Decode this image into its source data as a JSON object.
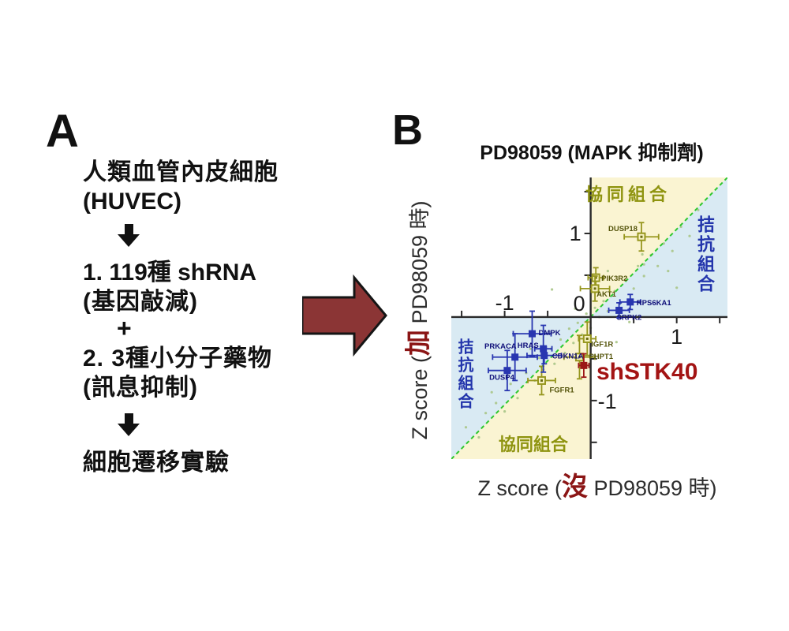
{
  "panelA": {
    "label": "A",
    "line1": "人類血管內皮細胞",
    "line2": "(HUVEC)",
    "line3": "1. 119種 shRNA",
    "line4": "(基因敲減)",
    "plus": "+",
    "line5": "2. 3種小分子藥物",
    "line6": "(訊息抑制)",
    "line7": "細胞遷移實驗"
  },
  "panelB": {
    "label": "B",
    "title": "PD98059 (MAPK 抑制劑)",
    "xlabel_pre": "Z score (",
    "xlabel_highlight": "沒",
    "xlabel_post": " PD98059 時)",
    "ylabel_pre": "Z score (",
    "ylabel_highlight": "加",
    "ylabel_post": " PD98059 時)",
    "annotation": "shSTK40",
    "quadrant_top": "協同組合",
    "quadrant_bottom": "協同組合",
    "quadrant_left": "拮抗組合",
    "quadrant_right": "拮抗組合"
  },
  "colors": {
    "flow_arrow_fill": "#8b3535",
    "flow_arrow_stroke": "#151515",
    "yellow_region": "#faf4d2",
    "blue_region": "#d9eaf3",
    "diagonal": "#2ec72e",
    "axis": "#2a2a2a",
    "olive_series": "#96961e",
    "olive_marker_fill": "#f7f2c2",
    "olive_label": "#55550c",
    "blue_series": "#2836b0",
    "blue_label": "#10107a",
    "red_series": "#9c1616",
    "background_dots": "#a9c587",
    "highlight_text": "#8b1515",
    "annotation_text": "#a31414"
  },
  "chart_data": {
    "type": "scatter",
    "title": "PD98059 (MAPK 抑制劑)",
    "xlabel": "Z score (沒 PD98059 時)",
    "ylabel": "Z score (加 PD98059 時)",
    "xlim": [
      -1.62,
      1.59
    ],
    "ylim": [
      -1.7,
      1.67
    ],
    "grid": false,
    "diagonal_line": {
      "style": "dashed",
      "color": "#2ec72e",
      "equation": "y = x"
    },
    "minor_ticks": [
      -1.5,
      -1,
      -0.5,
      0.5,
      1,
      1.5
    ],
    "x_ticks_labeled": [
      {
        "v": -1,
        "text": "-1",
        "placement": "above"
      },
      {
        "v": 0,
        "text": "0",
        "placement": "above-left"
      },
      {
        "v": 1,
        "text": "1",
        "placement": "below"
      }
    ],
    "y_ticks_labeled": [
      {
        "v": 1,
        "text": "1",
        "placement": "left"
      },
      {
        "v": -1,
        "text": "-1",
        "placement": "right"
      }
    ],
    "quadrant_labels": [
      {
        "text": "協同組合",
        "region": "upper-left-of-diagonal",
        "color": "#8f9410"
      },
      {
        "text": "拮抗組合",
        "region": "right-of-diagonal",
        "color": "#2335ac"
      },
      {
        "text": "拮抗組合",
        "region": "left-above-diagonal",
        "color": "#2335ac"
      },
      {
        "text": "協同組合",
        "region": "lower-below-diagonal",
        "color": "#8f9410"
      }
    ],
    "series": [
      {
        "name": "olive-open-squares",
        "marker": "open-square",
        "color": "#96961e",
        "points": [
          {
            "g": "DUSP18",
            "x": 0.59,
            "y": 0.96,
            "ex": 0.2,
            "ey": 0.17,
            "dx": -5,
            "dy": -7,
            "anchor": "end"
          },
          {
            "g": "PIK3R2",
            "x": 0.06,
            "y": 0.47,
            "ex": 0.09,
            "ey": 0.12,
            "dx": 7,
            "dy": 4,
            "anchor": "start"
          },
          {
            "g": "AKT1",
            "x": 0.05,
            "y": 0.34,
            "ex": 0.17,
            "ey": 0.15,
            "dx": 2,
            "dy": 10,
            "anchor": "start"
          },
          {
            "g": "IGF1R",
            "x": -0.04,
            "y": -0.26,
            "ex": 0.1,
            "ey": 0.2,
            "dx": 5,
            "dy": 10,
            "anchor": "start"
          },
          {
            "g": "PHPT1",
            "x": -0.13,
            "y": -0.48,
            "ex": 0.18,
            "ey": 0.26,
            "dx": 12,
            "dy": 2,
            "anchor": "start"
          },
          {
            "g": "FGFR1",
            "x": -0.57,
            "y": -0.76,
            "ex": 0.16,
            "ey": 0.17,
            "dx": 10,
            "dy": 15,
            "anchor": "start"
          }
        ]
      },
      {
        "name": "blue-filled-squares",
        "marker": "filled-square",
        "color": "#2836b0",
        "points": [
          {
            "g": "RPS6KA1",
            "x": 0.46,
            "y": 0.18,
            "ex": 0.12,
            "ey": 0.09,
            "dx": 8,
            "dy": 4,
            "anchor": "start"
          },
          {
            "g": "SRPK2",
            "x": 0.33,
            "y": 0.08,
            "ex": 0.12,
            "ey": 0.09,
            "dx": -3,
            "dy": 12,
            "anchor": "start"
          },
          {
            "g": "DMPK",
            "x": -0.68,
            "y": -0.2,
            "ex": 0.22,
            "ey": 0.27,
            "dx": 8,
            "dy": 2,
            "anchor": "start"
          },
          {
            "g": "HRAS",
            "x": -0.55,
            "y": -0.38,
            "ex": 0.1,
            "ey": 0.28,
            "dx": -6,
            "dy": -1,
            "anchor": "end"
          },
          {
            "g": "CDKN1A",
            "x": -0.54,
            "y": -0.46,
            "ex": 0.2,
            "ey": 0.1,
            "dx": 10,
            "dy": 4,
            "anchor": "start"
          },
          {
            "g": "PRKACA",
            "x": -0.88,
            "y": -0.48,
            "ex": 0.26,
            "ey": 0.28,
            "dx": 2,
            "dy": -11,
            "anchor": "end"
          },
          {
            "g": "DUSP4",
            "x": -0.97,
            "y": -0.64,
            "ex": 0.22,
            "ey": 0.24,
            "dx": 9,
            "dy": 12,
            "anchor": "end"
          }
        ]
      },
      {
        "name": "shSTK40-highlight",
        "marker": "filled-square",
        "color": "#9c1616",
        "points": [
          {
            "g": "shSTK40",
            "x": -0.08,
            "y": -0.58,
            "ex": 0.06,
            "ey": 0.14,
            "dx": 0,
            "dy": 0,
            "anchor": "none"
          }
        ]
      }
    ],
    "background_points": {
      "color": "#a9c587",
      "xy": [
        [
          -1.45,
          -1.32
        ],
        [
          -1.3,
          -1.44
        ],
        [
          -1.22,
          -1.15
        ],
        [
          -1.1,
          -1.03
        ],
        [
          -1.0,
          -1.13
        ],
        [
          -0.93,
          -0.8
        ],
        [
          -0.85,
          -0.97
        ],
        [
          -0.75,
          -0.67
        ],
        [
          -0.65,
          -0.76
        ],
        [
          -0.6,
          -0.49
        ],
        [
          -0.55,
          -0.63
        ],
        [
          -0.46,
          -0.38
        ],
        [
          -0.42,
          -0.56
        ],
        [
          -0.35,
          -0.27
        ],
        [
          -0.3,
          -0.43
        ],
        [
          -0.25,
          -0.14
        ],
        [
          -0.2,
          -0.31
        ],
        [
          -0.15,
          -0.07
        ],
        [
          -0.1,
          -0.21
        ],
        [
          -0.05,
          0.04
        ],
        [
          0.0,
          -0.13
        ],
        [
          0.05,
          0.11
        ],
        [
          0.1,
          0.0
        ],
        [
          0.15,
          0.19
        ],
        [
          0.2,
          0.07
        ],
        [
          0.28,
          0.31
        ],
        [
          0.35,
          0.17
        ],
        [
          0.4,
          0.44
        ],
        [
          0.5,
          0.34
        ],
        [
          0.55,
          0.61
        ],
        [
          0.62,
          0.49
        ],
        [
          0.7,
          0.74
        ],
        [
          0.78,
          0.61
        ],
        [
          0.85,
          0.88
        ],
        [
          0.95,
          0.79
        ],
        [
          1.05,
          1.08
        ],
        [
          1.15,
          0.97
        ],
        [
          1.25,
          1.28
        ],
        [
          0.45,
          -0.06
        ],
        [
          0.6,
          0.75
        ],
        [
          -0.45,
          0.33
        ],
        [
          -0.7,
          -0.38
        ],
        [
          0.3,
          -0.3
        ],
        [
          0.9,
          0.55
        ],
        [
          -0.18,
          0.1
        ],
        [
          0.2,
          0.55
        ],
        [
          0.62,
          0.63
        ],
        [
          1.0,
          0.35
        ],
        [
          1.3,
          1.1
        ],
        [
          -1.15,
          -0.9
        ]
      ]
    }
  }
}
